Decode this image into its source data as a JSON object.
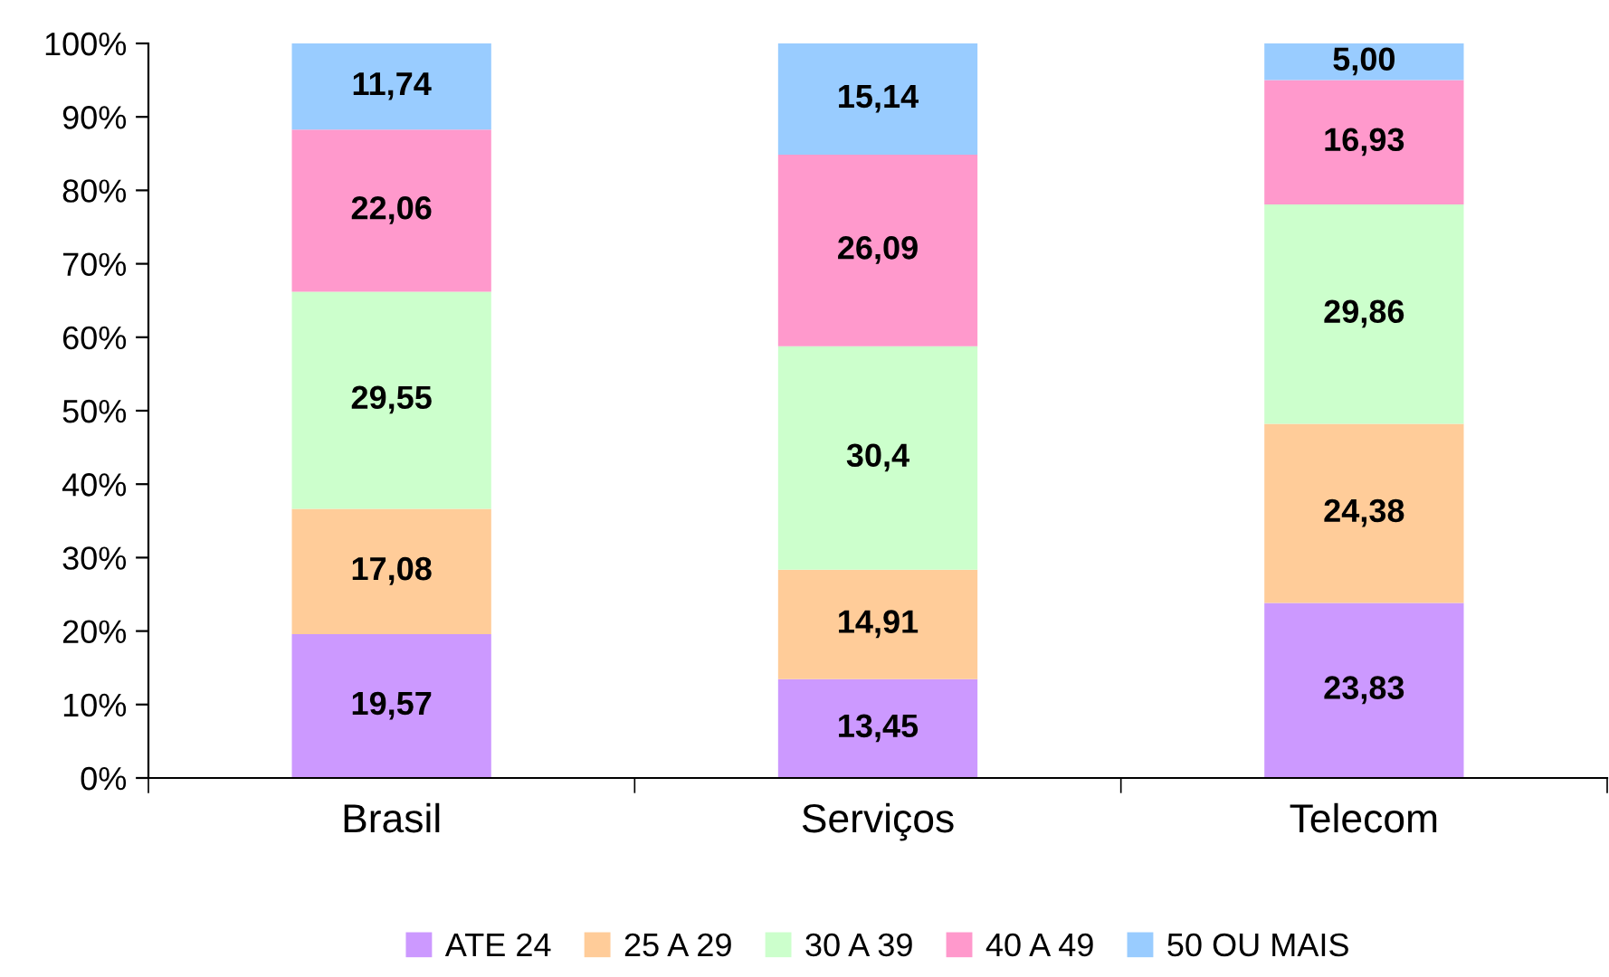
{
  "chart_data": {
    "type": "bar",
    "stacked": true,
    "categories": [
      "Brasil",
      "Serviços",
      "Telecom"
    ],
    "ylim": [
      0,
      100
    ],
    "yticks": [
      {
        "value": 0,
        "label": "0%"
      },
      {
        "value": 10,
        "label": "10%"
      },
      {
        "value": 20,
        "label": "20%"
      },
      {
        "value": 30,
        "label": "30%"
      },
      {
        "value": 40,
        "label": "40%"
      },
      {
        "value": 50,
        "label": "50%"
      },
      {
        "value": 60,
        "label": "60%"
      },
      {
        "value": 70,
        "label": "70%"
      },
      {
        "value": 80,
        "label": "80%"
      },
      {
        "value": 90,
        "label": "90%"
      },
      {
        "value": 100,
        "label": "100%"
      }
    ],
    "grid": false,
    "legend": "bottom",
    "series": [
      {
        "name": "ATE 24",
        "color": "#cc99ff",
        "values": [
          19.57,
          13.45,
          23.83
        ],
        "value_labels": [
          "19,57",
          "13,45",
          "23,83"
        ]
      },
      {
        "name": "25 A 29",
        "color": "#ffcc99",
        "values": [
          17.08,
          14.91,
          24.38
        ],
        "value_labels": [
          "17,08",
          "14,91",
          "24,38"
        ]
      },
      {
        "name": "30 A 39",
        "color": "#ccffcc",
        "values": [
          29.55,
          30.4,
          29.86
        ],
        "value_labels": [
          "29,55",
          "30,4",
          "29,86"
        ]
      },
      {
        "name": "40 A 49",
        "color": "#ff99cc",
        "values": [
          22.06,
          26.09,
          16.93
        ],
        "value_labels": [
          "22,06",
          "26,09",
          "16,93"
        ]
      },
      {
        "name": "50 OU MAIS",
        "color": "#99ccff",
        "values": [
          11.74,
          15.14,
          5.0
        ],
        "value_labels": [
          "11,74",
          "15,14",
          "5,00"
        ]
      }
    ]
  }
}
